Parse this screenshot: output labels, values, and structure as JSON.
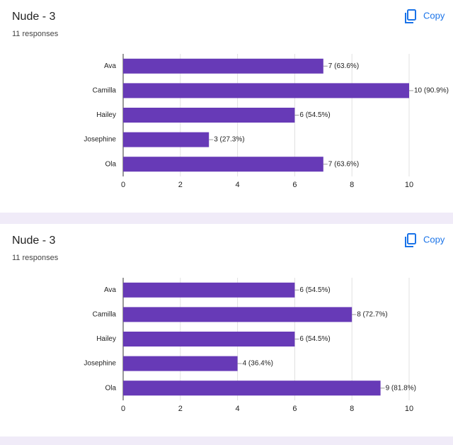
{
  "chart_data": [
    {
      "type": "bar",
      "horizontal": true,
      "title": "Nude - 3",
      "subtitle": "11 responses",
      "button": "Copy",
      "categories": [
        "Ava",
        "Camilla",
        "Hailey",
        "Josephine",
        "Ola"
      ],
      "values": [
        7,
        10,
        6,
        3,
        7
      ],
      "value_labels": [
        "7 (63.6%)",
        "10 (90.9%)",
        "6 (54.5%)",
        "3 (27.3%)",
        "7 (63.6%)"
      ],
      "color": "#673ab7",
      "xlim": [
        0,
        10
      ],
      "xticks": [
        0,
        2,
        4,
        6,
        8,
        10
      ],
      "grid": true
    },
    {
      "type": "bar",
      "horizontal": true,
      "title": "Nude - 3",
      "subtitle": "11 responses",
      "button": "Copy",
      "categories": [
        "Ava",
        "Camilla",
        "Hailey",
        "Josephine",
        "Ola"
      ],
      "values": [
        6,
        8,
        6,
        4,
        9
      ],
      "value_labels": [
        "6 (54.5%)",
        "8 (72.7%)",
        "6 (54.5%)",
        "4 (36.4%)",
        "9 (81.8%)"
      ],
      "color": "#673ab7",
      "xlim": [
        0,
        10
      ],
      "xticks": [
        0,
        2,
        4,
        6,
        8,
        10
      ],
      "grid": true
    }
  ]
}
